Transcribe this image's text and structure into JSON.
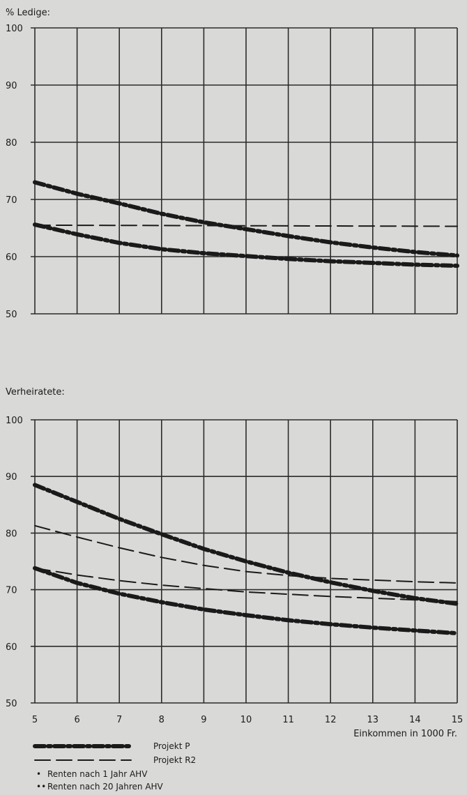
{
  "chart_data": [
    {
      "type": "line",
      "ylabel": "% Ledige:",
      "ylim": [
        50,
        100
      ],
      "xlim": [
        5,
        15
      ],
      "yticks": [
        "50",
        "60",
        "70",
        "80",
        "90",
        "100"
      ],
      "grid": true,
      "series": [
        {
          "key": "P_1",
          "name": "",
          "style": "dash-dot-bold",
          "x": [
            5,
            6,
            7,
            8,
            9,
            10,
            11,
            12,
            13,
            14,
            15
          ],
          "y": [
            73,
            71,
            69.3,
            67.5,
            66,
            64.8,
            63.6,
            62.5,
            61.6,
            60.8,
            60.2
          ]
        },
        {
          "key": "P_20",
          "name": "",
          "style": "dash-dot-bold",
          "x": [
            5,
            6,
            7,
            8,
            9,
            10,
            11,
            12,
            13,
            14,
            15
          ],
          "y": [
            65.6,
            63.9,
            62.4,
            61.3,
            60.6,
            60.1,
            59.6,
            59.2,
            58.9,
            58.6,
            58.4
          ]
        },
        {
          "key": "R2",
          "name": "",
          "style": "dash",
          "x": [
            5,
            15
          ],
          "y": [
            65.5,
            65.3
          ]
        }
      ]
    },
    {
      "type": "line",
      "ylabel": "Verheiratete:",
      "ylim": [
        50,
        100
      ],
      "xlim": [
        5,
        15
      ],
      "yticks": [
        "50",
        "60",
        "70",
        "80",
        "90",
        "100"
      ],
      "xticks": [
        "5",
        "6",
        "7",
        "8",
        "9",
        "10",
        "11",
        "12",
        "13",
        "14",
        "15"
      ],
      "xlabel": "Einkommen in 1000 Fr.",
      "grid": true,
      "series": [
        {
          "key": "P_1",
          "name": "",
          "style": "dash-dot-bold",
          "x": [
            5,
            6,
            7,
            8,
            9,
            10,
            11,
            12,
            13,
            14,
            15
          ],
          "y": [
            88.5,
            85.5,
            82.5,
            79.8,
            77.2,
            75,
            73,
            71.3,
            69.8,
            68.5,
            67.5
          ]
        },
        {
          "key": "P_20",
          "name": "",
          "style": "dash-dot-bold",
          "x": [
            5,
            6,
            7,
            8,
            9,
            10,
            11,
            12,
            13,
            14,
            15
          ],
          "y": [
            73.8,
            71.2,
            69.3,
            67.8,
            66.5,
            65.5,
            64.6,
            63.9,
            63.3,
            62.8,
            62.3
          ]
        },
        {
          "key": "R2_1",
          "name": "",
          "style": "dash",
          "x": [
            5,
            6,
            7,
            8,
            9,
            10,
            11,
            12,
            13,
            14,
            15
          ],
          "y": [
            81.3,
            79.3,
            77.4,
            75.7,
            74.3,
            73.2,
            72.5,
            72,
            71.7,
            71.4,
            71.2
          ]
        },
        {
          "key": "R2_20",
          "name": "",
          "style": "dash",
          "x": [
            5,
            6,
            7,
            8,
            9,
            10,
            11,
            12,
            13,
            14,
            15
          ],
          "y": [
            73.8,
            72.6,
            71.6,
            70.8,
            70.2,
            69.6,
            69.2,
            68.8,
            68.5,
            68.2,
            67.9
          ]
        }
      ]
    }
  ],
  "legend": [
    {
      "label": "Projekt P",
      "style": "dash-dot-bold"
    },
    {
      "label": "Projekt R2",
      "style": "dash"
    }
  ],
  "notes": [
    {
      "marker": "•",
      "label": "Renten nach 1 Jahr AHV"
    },
    {
      "marker": "••",
      "label": "Renten nach 20 Jahren AHV"
    }
  ],
  "colors": {
    "background": "#d9d9d7",
    "ink": "#1a1a1a",
    "grid": "#2b2b2b"
  }
}
